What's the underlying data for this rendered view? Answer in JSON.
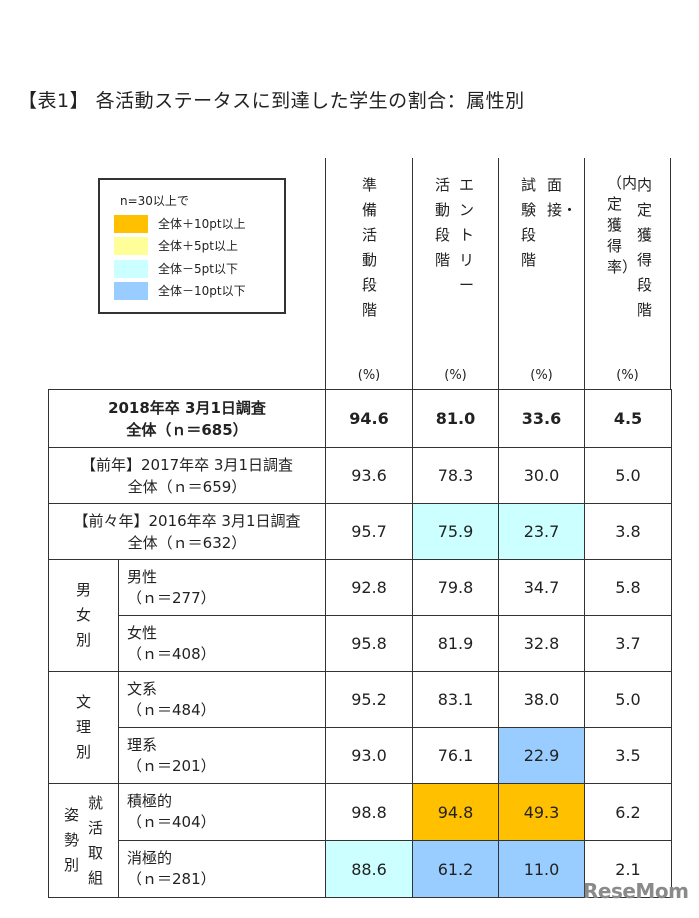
{
  "title": "【表1】 各活動ステータスに到達した学生の割合：属性別",
  "legend": {
    "condition": "n=30以上で",
    "items": [
      {
        "label": "全体＋10pt以上",
        "color": "#ffc000"
      },
      {
        "label": "全体＋5pt以上",
        "color": "#ffff99"
      },
      {
        "label": "全体－5pt以下",
        "color": "#ccffff"
      },
      {
        "label": "全体－10pt以下",
        "color": "#99ccff"
      }
    ]
  },
  "columns": [
    {
      "lines": [
        "準備活動段階"
      ],
      "unit": "(%)"
    },
    {
      "lines": [
        "エントリー",
        "活動段階"
      ],
      "unit": "(%)"
    },
    {
      "lines": [
        "面接・",
        "試験段階"
      ],
      "unit": "(%)"
    },
    {
      "lines": [
        "内定獲得段階",
        "（内定獲得率）"
      ],
      "unit": "(%)"
    }
  ],
  "summary_rows": [
    {
      "line1": "2018年卒 3月1日調査",
      "line2": "全体（ｎ＝685）",
      "values": [
        "94.6",
        "81.0",
        "33.6",
        "4.5"
      ],
      "colors": [
        "",
        "",
        "",
        ""
      ]
    },
    {
      "line1": "【前年】2017年卒 3月1日調査",
      "line2": "全体（ｎ＝659）",
      "values": [
        "93.6",
        "78.3",
        "30.0",
        "5.0"
      ],
      "colors": [
        "",
        "",
        "",
        ""
      ]
    },
    {
      "line1": "【前々年】2016年卒 3月1日調査",
      "line2": "全体（ｎ＝632）",
      "values": [
        "95.7",
        "75.9",
        "23.7",
        "3.8"
      ],
      "colors": [
        "",
        "#ccffff",
        "#ccffff",
        ""
      ]
    }
  ],
  "groups": [
    {
      "label": "男女別",
      "rows": [
        {
          "name": "男性",
          "n": "（ｎ＝277）",
          "values": [
            "92.8",
            "79.8",
            "34.7",
            "5.8"
          ],
          "colors": [
            "",
            "",
            "",
            ""
          ]
        },
        {
          "name": "女性",
          "n": "（ｎ＝408）",
          "values": [
            "95.8",
            "81.9",
            "32.8",
            "3.7"
          ],
          "colors": [
            "",
            "",
            "",
            ""
          ]
        }
      ]
    },
    {
      "label": "文理別",
      "rows": [
        {
          "name": "文系",
          "n": "（ｎ＝484）",
          "values": [
            "95.2",
            "83.1",
            "38.0",
            "5.0"
          ],
          "colors": [
            "",
            "",
            "",
            ""
          ]
        },
        {
          "name": "理系",
          "n": "（ｎ＝201）",
          "values": [
            "93.0",
            "76.1",
            "22.9",
            "3.5"
          ],
          "colors": [
            "",
            "",
            "#99ccff",
            ""
          ]
        }
      ]
    },
    {
      "label": "姿勢別",
      "sublabel": "就活取組",
      "rows": [
        {
          "name": "積極的",
          "n": "（ｎ＝404）",
          "values": [
            "98.8",
            "94.8",
            "49.3",
            "6.2"
          ],
          "colors": [
            "",
            "#ffc000",
            "#ffc000",
            ""
          ]
        },
        {
          "name": "消極的",
          "n": "（ｎ＝281）",
          "values": [
            "88.6",
            "61.2",
            "11.0",
            "2.1"
          ],
          "colors": [
            "#ccffff",
            "#99ccff",
            "#99ccff",
            ""
          ]
        }
      ]
    }
  ],
  "watermark": "ReseMom"
}
